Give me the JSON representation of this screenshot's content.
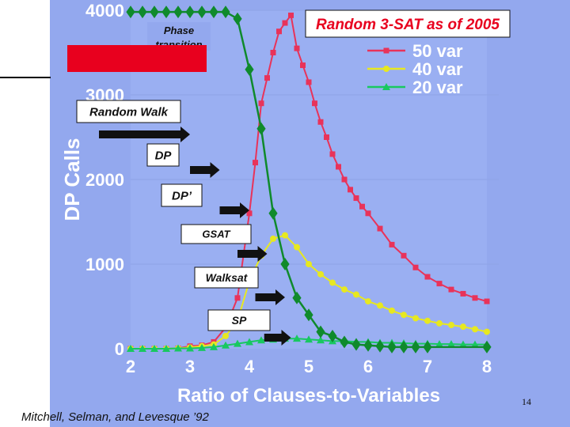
{
  "chart_data": {
    "type": "line",
    "title": "Random 3-SAT as of 2005",
    "xlabel": "Ratio of Clauses-to-Variables",
    "ylabel": "DP Calls",
    "xlim": [
      2,
      8
    ],
    "ylim": [
      0,
      4000
    ],
    "x_ticks": [
      "2",
      "3",
      "4",
      "5",
      "6",
      "7",
      "8"
    ],
    "y_ticks": [
      "0",
      "1000",
      "2000",
      "3000",
      "4000"
    ],
    "legend_position": "top-right",
    "colors": {
      "background": "#93a8ee",
      "series_50": "#e8335a",
      "series_40": "#e7e820",
      "series_20": "#18c860",
      "phase": "#0f8a2c",
      "phase_label_box": "#e8001e",
      "arrow": "#111111"
    },
    "series": [
      {
        "name": "50 var",
        "x": [
          2.0,
          2.2,
          2.4,
          2.6,
          2.8,
          3.0,
          3.2,
          3.4,
          3.6,
          3.8,
          4.0,
          4.1,
          4.2,
          4.3,
          4.4,
          4.5,
          4.6,
          4.7,
          4.8,
          4.9,
          5.0,
          5.1,
          5.2,
          5.3,
          5.4,
          5.5,
          5.6,
          5.7,
          5.8,
          5.9,
          6.0,
          6.2,
          6.4,
          6.6,
          6.8,
          7.0,
          7.2,
          7.4,
          7.6,
          7.8,
          8.0
        ],
        "values": [
          0,
          0,
          0,
          0,
          5,
          30,
          40,
          80,
          250,
          600,
          1600,
          2200,
          2900,
          3200,
          3500,
          3750,
          3850,
          3940,
          3550,
          3350,
          3150,
          2900,
          2680,
          2500,
          2300,
          2150,
          2000,
          1880,
          1780,
          1680,
          1600,
          1420,
          1230,
          1100,
          960,
          850,
          770,
          700,
          650,
          600,
          560
        ]
      },
      {
        "name": "40 var",
        "x": [
          2.0,
          2.2,
          2.4,
          2.6,
          2.8,
          3.0,
          3.2,
          3.4,
          3.6,
          3.8,
          4.0,
          4.2,
          4.4,
          4.6,
          4.8,
          5.0,
          5.2,
          5.4,
          5.6,
          5.8,
          6.0,
          6.2,
          6.4,
          6.6,
          6.8,
          7.0,
          7.2,
          7.4,
          7.6,
          7.8,
          8.0
        ],
        "values": [
          0,
          0,
          0,
          0,
          5,
          15,
          30,
          50,
          150,
          330,
          800,
          1100,
          1300,
          1340,
          1200,
          1000,
          880,
          780,
          700,
          640,
          560,
          510,
          450,
          400,
          360,
          330,
          300,
          280,
          260,
          230,
          200
        ]
      },
      {
        "name": "20 var",
        "x": [
          2.0,
          2.2,
          2.4,
          2.6,
          2.8,
          3.0,
          3.2,
          3.4,
          3.6,
          3.8,
          4.0,
          4.2,
          4.4,
          4.6,
          4.8,
          5.0,
          5.2,
          5.4,
          5.6,
          5.8,
          6.0,
          6.2,
          6.4,
          6.6,
          6.8,
          7.0,
          7.2,
          7.4,
          7.6,
          7.8,
          8.0
        ],
        "values": [
          0,
          0,
          0,
          0,
          5,
          5,
          10,
          20,
          40,
          60,
          80,
          100,
          110,
          120,
          120,
          110,
          100,
          90,
          90,
          80,
          80,
          70,
          70,
          65,
          60,
          60,
          55,
          55,
          50,
          50,
          50
        ]
      },
      {
        "name": "",
        "x": [
          2.0,
          2.2,
          2.4,
          2.6,
          2.8,
          3.0,
          3.2,
          3.4,
          3.6,
          3.8,
          4.0,
          4.2,
          4.4,
          4.6,
          4.8,
          5.0,
          5.2,
          5.4,
          5.6,
          5.8,
          6.0,
          6.2,
          6.4,
          6.6,
          6.8,
          7.0,
          8.0
        ],
        "values": [
          3980,
          3980,
          3980,
          3980,
          3980,
          3980,
          3980,
          3980,
          3980,
          3900,
          3300,
          2600,
          1600,
          1000,
          600,
          400,
          200,
          150,
          80,
          50,
          40,
          30,
          20,
          20,
          20,
          20,
          20
        ]
      }
    ],
    "annotations": {
      "phase_label": "Phase transition",
      "methods": [
        {
          "label": "Random Walk",
          "start": 2.0,
          "end": 3.0
        },
        {
          "label": "DP",
          "start": 3.0,
          "end": 3.5
        },
        {
          "label": "DP’",
          "start": 3.5,
          "end": 4.0
        },
        {
          "label": "GSAT",
          "start": 3.8,
          "end": 4.3
        },
        {
          "label": "Walksat",
          "start": 4.1,
          "end": 4.6
        },
        {
          "label": "SP",
          "start": 4.25,
          "end": 4.7
        }
      ]
    }
  },
  "footer": {
    "citation": "Mitchell, Selman, and Levesque ’92",
    "page_number": "14"
  }
}
